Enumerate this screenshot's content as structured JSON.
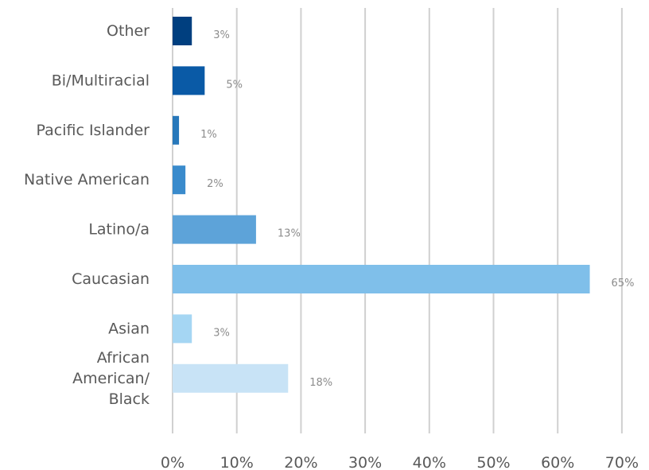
{
  "chart_data": {
    "type": "bar",
    "orientation": "horizontal",
    "categories": [
      "Other",
      "Bi/Multiracial",
      "Pacific Islander",
      "Native American",
      "Latino/a",
      "Caucasian",
      "Asian",
      "African American/ Black"
    ],
    "category_lines": [
      [
        "Other"
      ],
      [
        "Bi/Multiracial"
      ],
      [
        "Pacific Islander"
      ],
      [
        "Native American"
      ],
      [
        "Latino/a"
      ],
      [
        "Caucasian"
      ],
      [
        "Asian"
      ],
      [
        "African",
        "American/",
        "Black"
      ]
    ],
    "values": [
      3,
      5,
      1,
      2,
      13,
      65,
      3,
      18
    ],
    "data_labels": [
      "3%",
      "5%",
      "1%",
      "2%",
      "13%",
      "65%",
      "3%",
      "18%"
    ],
    "colors": [
      "#003f7f",
      "#0a5aa6",
      "#2878ba",
      "#3a8bcc",
      "#5da3d9",
      "#7fbfea",
      "#a5d6f3",
      "#c8e3f6"
    ],
    "title": "",
    "xlabel": "",
    "ylabel": "",
    "xlim": [
      0,
      70
    ],
    "x_ticks": [
      0,
      10,
      20,
      30,
      40,
      50,
      60,
      70
    ],
    "x_tick_labels": [
      "0%",
      "10%",
      "20%",
      "30%",
      "40%",
      "50%",
      "60%",
      "70%"
    ],
    "grid": true,
    "legend": "none"
  }
}
